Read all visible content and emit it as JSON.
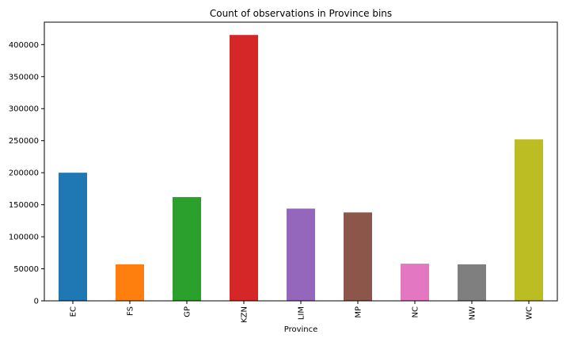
{
  "chart_data": {
    "type": "bar",
    "title": "Count of observations in Province bins",
    "xlabel": "Province",
    "ylabel": "",
    "categories": [
      "EC",
      "FS",
      "GP",
      "KZN",
      "LIM",
      "MP",
      "NC",
      "NW",
      "WC"
    ],
    "values": [
      200000,
      57000,
      162000,
      415000,
      144000,
      138000,
      58000,
      57000,
      252000
    ],
    "colors": [
      "#1f77b4",
      "#ff7f0e",
      "#2ca02c",
      "#d62728",
      "#9467bd",
      "#8c564b",
      "#e377c2",
      "#7f7f7f",
      "#bcbd22"
    ],
    "ylim": [
      0,
      435000
    ],
    "yticks": [
      0,
      50000,
      100000,
      150000,
      200000,
      250000,
      300000,
      350000,
      400000
    ],
    "grid": false,
    "legend": "none"
  }
}
